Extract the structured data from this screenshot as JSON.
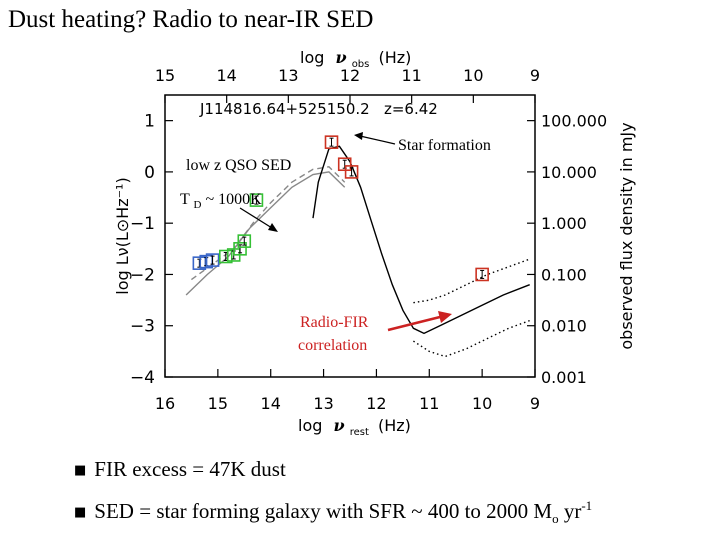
{
  "slide": {
    "title": "Dust heating? Radio to near-IR SED",
    "bullets": [
      {
        "text": "FIR excess = 47K dust"
      },
      {
        "pre": "SED = star forming galaxy with  SFR ~ 400 to 2000 M",
        "sub": "o",
        "mid": " yr",
        "sup": "-1"
      }
    ]
  },
  "chart_data": {
    "type": "scatter",
    "object_label": "J114816.64+525150.2   z=6.42",
    "x_top": {
      "label": "log",
      "symbol": "ν",
      "subscript": "obs",
      "unit": "(Hz)",
      "ticks": [
        15,
        14,
        13,
        12,
        11,
        10,
        9
      ],
      "lim": [
        15.0,
        9.0
      ]
    },
    "x_bottom": {
      "label": "log",
      "symbol": "ν",
      "subscript": "rest",
      "unit": "(Hz)",
      "ticks": [
        16,
        15,
        14,
        13,
        12,
        11,
        10,
        9
      ],
      "lim": [
        16.0,
        9.0
      ]
    },
    "y_left": {
      "label": "log Lν(L⊙Hz⁻¹)",
      "ticks": [
        1,
        0,
        -1,
        -2,
        -3,
        -4
      ],
      "lim": [
        -4.0,
        1.5
      ]
    },
    "y_right": {
      "label": "observed flux density in mJy",
      "ticks": [
        "100.000",
        "10.000",
        "1.000",
        "0.100",
        "0.010",
        "0.001"
      ],
      "tick_logs": [
        2,
        1,
        0,
        -1,
        -2,
        -3
      ],
      "lim_log": [
        -3.0,
        2.5
      ]
    },
    "series": [
      {
        "name": "low z QSO SED",
        "style": "dashed",
        "color": "#888888",
        "x": [
          15.5,
          15.1,
          14.7,
          14.3,
          14.0,
          13.6,
          13.2,
          12.9,
          12.6
        ],
        "y": [
          -2.1,
          -1.8,
          -1.5,
          -0.95,
          -0.6,
          -0.2,
          0.05,
          0.1,
          -0.2
        ]
      },
      {
        "name": "low z QSO SED (alt)",
        "style": "solid",
        "color": "#888888",
        "x": [
          15.6,
          15.2,
          14.8,
          14.4,
          14.0,
          13.6,
          13.2,
          12.9,
          12.6
        ],
        "y": [
          -2.4,
          -2.0,
          -1.65,
          -1.1,
          -0.7,
          -0.3,
          -0.05,
          0.0,
          -0.3
        ]
      },
      {
        "name": "Star formation",
        "style": "solid",
        "color": "#000000",
        "x": [
          13.2,
          13.1,
          12.9,
          12.7,
          12.5,
          12.3,
          12.1,
          11.9,
          11.7,
          11.5,
          11.3,
          11.1,
          10.8,
          10.4,
          10.0,
          9.6,
          9.1
        ],
        "y": [
          -0.9,
          -0.2,
          0.45,
          0.5,
          0.2,
          -0.3,
          -0.95,
          -1.6,
          -2.2,
          -2.7,
          -3.05,
          -3.15,
          -3.0,
          -2.8,
          -2.6,
          -2.4,
          -2.2
        ]
      },
      {
        "name": "Radio-FIR range upper",
        "style": "dotted",
        "color": "#000000",
        "x": [
          11.3,
          11.0,
          10.7,
          10.3,
          9.9,
          9.5,
          9.1
        ],
        "y": [
          -2.55,
          -2.5,
          -2.4,
          -2.2,
          -2.0,
          -1.85,
          -1.7
        ]
      },
      {
        "name": "Radio-FIR range lower",
        "style": "dotted",
        "color": "#000000",
        "x": [
          11.3,
          11.0,
          10.7,
          10.3,
          9.9,
          9.5,
          9.1
        ],
        "y": [
          -3.3,
          -3.5,
          -3.6,
          -3.45,
          -3.25,
          -3.05,
          -2.9
        ]
      }
    ],
    "points": [
      {
        "group": "optical",
        "color": "#3a66c8",
        "x": 15.35,
        "y": -1.78
      },
      {
        "group": "optical",
        "color": "#3a66c8",
        "x": 15.22,
        "y": -1.75
      },
      {
        "group": "optical",
        "color": "#3a66c8",
        "x": 15.1,
        "y": -1.72
      },
      {
        "group": "near-IR",
        "color": "#35c035",
        "x": 14.85,
        "y": -1.65
      },
      {
        "group": "near-IR",
        "color": "#35c035",
        "x": 14.7,
        "y": -1.62
      },
      {
        "group": "near-IR",
        "color": "#35c035",
        "x": 14.58,
        "y": -1.5
      },
      {
        "group": "near-IR",
        "color": "#35c035",
        "x": 14.5,
        "y": -1.35
      },
      {
        "group": "near-IR",
        "color": "#35c035",
        "x": 14.27,
        "y": -0.55
      },
      {
        "group": "far-IR",
        "color": "#cc3322",
        "x": 12.85,
        "y": 0.58
      },
      {
        "group": "far-IR",
        "color": "#cc3322",
        "x": 12.6,
        "y": 0.15
      },
      {
        "group": "far-IR",
        "color": "#cc3322",
        "x": 12.47,
        "y": -0.0
      },
      {
        "group": "radio",
        "color": "#cc3322",
        "x": 10.0,
        "y": -2.0
      }
    ],
    "annotations": [
      {
        "text": "Star formation",
        "color": "#000000"
      },
      {
        "text": "low z QSO SED",
        "color": "#000000"
      },
      {
        "text": "T",
        "sub": "D",
        "rest": " ~ 1000K",
        "color": "#000000"
      },
      {
        "text": "Radio-FIR correlation",
        "color": "#cc2222"
      }
    ]
  }
}
